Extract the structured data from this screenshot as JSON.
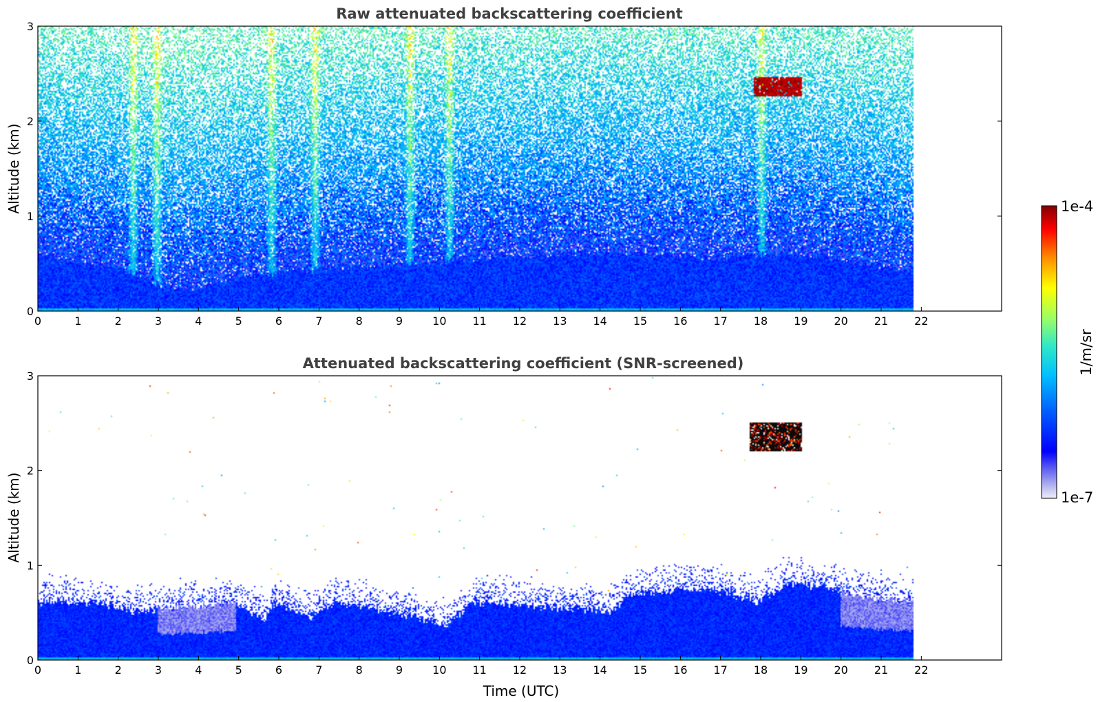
{
  "chart_data": [
    {
      "type": "heatmap",
      "title": "Raw attenuated backscattering coefficient",
      "xlabel": "",
      "ylabel": "Altitude (km)",
      "xlim": [
        0,
        24
      ],
      "ylim": [
        0,
        3
      ],
      "x_ticks": [
        "0",
        "1",
        "2",
        "3",
        "4",
        "5",
        "6",
        "7",
        "8",
        "9",
        "10",
        "11",
        "12",
        "13",
        "14",
        "15",
        "16",
        "17",
        "18",
        "19",
        "20",
        "21",
        "22"
      ],
      "y_ticks": [
        "0",
        "1",
        "2",
        "3"
      ],
      "data_time_range": [
        0,
        22.15
      ],
      "boundary_layer_top_km": [
        [
          0,
          0.55
        ],
        [
          2,
          0.45
        ],
        [
          3.5,
          0.2
        ],
        [
          4.5,
          0.3
        ],
        [
          6,
          0.4
        ],
        [
          8,
          0.45
        ],
        [
          10,
          0.5
        ],
        [
          11,
          0.55
        ],
        [
          14,
          0.6
        ],
        [
          17,
          0.55
        ],
        [
          19,
          0.6
        ],
        [
          20,
          0.55
        ],
        [
          22,
          0.4
        ]
      ],
      "noise_streaks_utc": [
        2.4,
        3,
        5.9,
        7,
        9.4,
        10.4,
        18.3
      ],
      "cloud": {
        "time_utc": [
          18.1,
          19.3
        ],
        "altitude_km": [
          2.25,
          2.45
        ]
      }
    },
    {
      "type": "heatmap",
      "title": "Attenuated backscattering coefficient (SNR-screened)",
      "xlabel": "Time (UTC)",
      "ylabel": "Altitude (km)",
      "xlim": [
        0,
        24
      ],
      "ylim": [
        0,
        3
      ],
      "x_ticks": [
        "0",
        "1",
        "2",
        "3",
        "4",
        "5",
        "6",
        "7",
        "8",
        "9",
        "10",
        "11",
        "12",
        "13",
        "14",
        "15",
        "16",
        "17",
        "18",
        "19",
        "20",
        "21",
        "22"
      ],
      "y_ticks": [
        "0",
        "1",
        "2",
        "3"
      ],
      "data_time_range": [
        0,
        22.15
      ],
      "boundary_layer_top_km": [
        [
          0,
          0.6
        ],
        [
          1.5,
          0.6
        ],
        [
          2.5,
          0.5
        ],
        [
          3.5,
          0.55
        ],
        [
          5,
          0.6
        ],
        [
          5.7,
          0.4
        ],
        [
          6,
          0.6
        ],
        [
          6.9,
          0.45
        ],
        [
          7.5,
          0.6
        ],
        [
          9.5,
          0.45
        ],
        [
          10.3,
          0.35
        ],
        [
          11,
          0.6
        ],
        [
          14.5,
          0.5
        ],
        [
          15,
          0.7
        ],
        [
          17,
          0.75
        ],
        [
          18.2,
          0.6
        ],
        [
          19,
          0.8
        ],
        [
          20,
          0.75
        ],
        [
          21,
          0.65
        ],
        [
          22.1,
          0.6
        ]
      ],
      "cloud": {
        "time_utc": [
          18.0,
          19.3
        ],
        "altitude_km": [
          2.2,
          2.5
        ]
      }
    }
  ],
  "colorbar": {
    "label": "1/m/sr",
    "max_label": "1e-4",
    "min_label": "1e-7",
    "scale": "log",
    "range": [
      1e-07,
      0.0001
    ],
    "colormap": "jet",
    "colors": [
      "#e8e8f8",
      "#a0a0f0",
      "#0000ff",
      "#0080ff",
      "#00c0ff",
      "#40e0c0",
      "#80ff80",
      "#ffff00",
      "#ff8000",
      "#ff0000",
      "#800000"
    ]
  }
}
